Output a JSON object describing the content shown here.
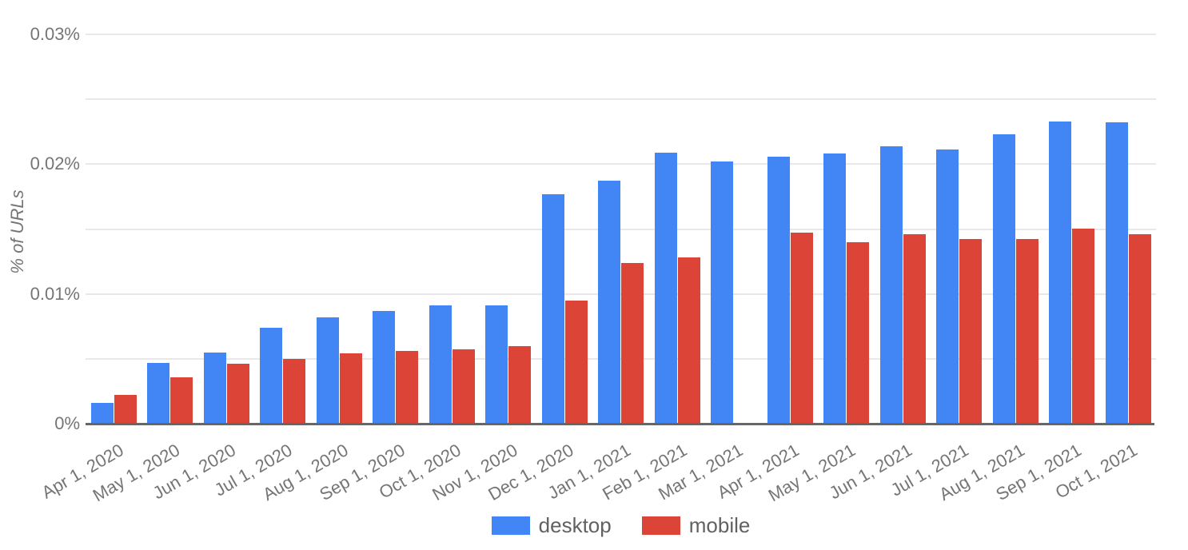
{
  "chart_data": {
    "type": "bar",
    "title": "",
    "xlabel": "",
    "ylabel": "% of URLs",
    "categories": [
      "Apr 1, 2020",
      "May 1, 2020",
      "Jun 1, 2020",
      "Jul 1, 2020",
      "Aug 1, 2020",
      "Sep 1, 2020",
      "Oct 1, 2020",
      "Nov 1, 2020",
      "Dec 1, 2020",
      "Jan 1, 2021",
      "Feb 1, 2021",
      "Mar 1, 2021",
      "Apr 1, 2021",
      "May 1, 2021",
      "Jun 1, 2021",
      "Jul 1, 2021",
      "Aug 1, 2021",
      "Sep 1, 2021",
      "Oct 1, 2021"
    ],
    "series": [
      {
        "name": "desktop",
        "color": "#4285F4",
        "values": [
          0.0016,
          0.0047,
          0.0055,
          0.0074,
          0.0082,
          0.0087,
          0.0091,
          0.0091,
          0.0177,
          0.0187,
          0.0209,
          0.0202,
          0.0206,
          0.0208,
          0.0214,
          0.0211,
          0.0223,
          0.0233,
          0.0232
        ]
      },
      {
        "name": "mobile",
        "color": "#DB4437",
        "values": [
          0.0022,
          0.0036,
          0.0046,
          0.005,
          0.0054,
          0.0056,
          0.0057,
          0.006,
          0.0095,
          0.0124,
          0.0128,
          null,
          0.0147,
          0.014,
          0.0146,
          0.0142,
          0.0142,
          0.015,
          0.0146
        ]
      }
    ],
    "y_axis": {
      "max": 0.03,
      "minor_gridline_interval": 0.005,
      "ticks": [
        {
          "value": 0,
          "label": "0%"
        },
        {
          "value": 0.01,
          "label": "0.01%"
        },
        {
          "value": 0.02,
          "label": "0.02%"
        },
        {
          "value": 0.03,
          "label": "0.03%"
        }
      ]
    },
    "legend": {
      "position": "bottom",
      "entries": [
        {
          "label": "desktop",
          "color": "#4285F4"
        },
        {
          "label": "mobile",
          "color": "#DB4437"
        }
      ]
    },
    "grid": true
  },
  "colors": {
    "background": "#ffffff",
    "gridline": "#e8e8e8",
    "axis_line": "#666666",
    "tick_text": "#757575",
    "axis_title_text": "#757575",
    "legend_text": "#616161"
  }
}
